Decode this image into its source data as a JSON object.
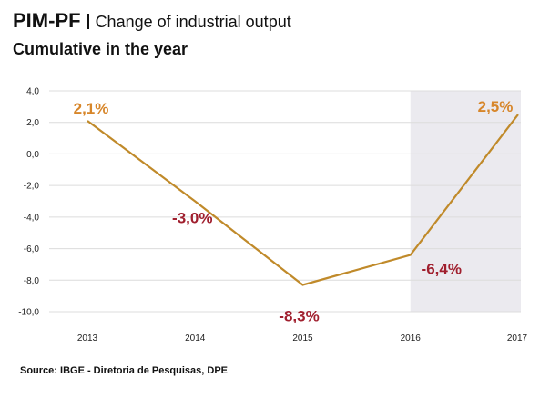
{
  "header": {
    "title": "PIM-PF",
    "subtitle_inline": "Change of industrial output",
    "subtitle": "Cumulative in the year"
  },
  "source": "Source: IBGE - Diretoria de Pesquisas, DPE",
  "colors": {
    "line": "#c08a2a",
    "positive_label": "#d7862a",
    "negative_label": "#a01f2e",
    "highlight_band": "#ebeaef"
  },
  "chart_data": {
    "type": "line",
    "categories": [
      "2013",
      "2014",
      "2015",
      "2016",
      "2017"
    ],
    "values": [
      2.1,
      -3.0,
      -8.3,
      -6.4,
      2.5
    ],
    "data_labels": [
      "2,1%",
      "-3,0%",
      "-8,3%",
      "-6,4%",
      "2,5%"
    ],
    "ylim": [
      -10,
      4
    ],
    "yticks": [
      4,
      2,
      0,
      -2,
      -4,
      -6,
      -8,
      -10
    ],
    "ytick_labels": [
      "4,0",
      "2,0",
      "0,0",
      "-2,0",
      "-4,0",
      "-6,0",
      "-8,0",
      "-10,0"
    ],
    "highlight_range": [
      "2016",
      "2017"
    ],
    "grid": true
  }
}
